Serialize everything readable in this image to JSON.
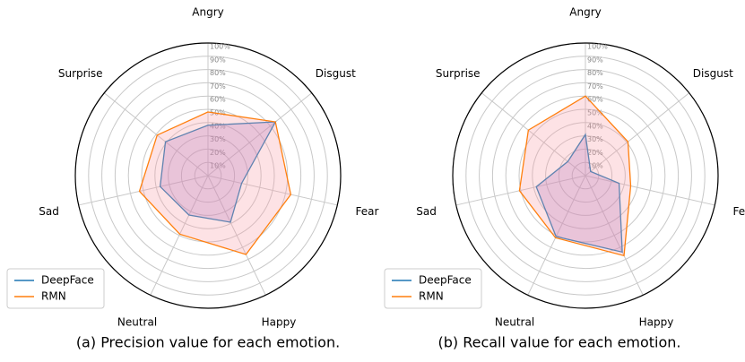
{
  "chart_data": [
    {
      "type": "radar",
      "caption": "(a) Precision value for each emotion.",
      "categories": [
        "Angry",
        "Disgust",
        "Fear",
        "Happy",
        "Neutral",
        "Sad",
        "Surprise"
      ],
      "series": [
        {
          "name": "DeepFace",
          "color": "#1f77b4",
          "fill": "#a070c8",
          "values": [
            38,
            65,
            26,
            39,
            33,
            37,
            41
          ]
        },
        {
          "name": "RMN",
          "color": "#ff7f0e",
          "fill": "#f7a0a8",
          "values": [
            48,
            65,
            64,
            66,
            49,
            53,
            49
          ]
        }
      ],
      "rlim": [
        0,
        100
      ],
      "rticks": [
        {
          "value": 10,
          "label": "10%"
        },
        {
          "value": 20,
          "label": "20%"
        },
        {
          "value": 30,
          "label": "30%"
        },
        {
          "value": 40,
          "label": "40%"
        },
        {
          "value": 50,
          "label": "50%"
        },
        {
          "value": 60,
          "label": "60%"
        },
        {
          "value": 70,
          "label": "70%"
        },
        {
          "value": 80,
          "label": "80%"
        },
        {
          "value": 90,
          "label": "90%"
        },
        {
          "value": 100,
          "label": "100%"
        }
      ],
      "legend": "lower left"
    },
    {
      "type": "radar",
      "caption": "(b) Recall value for each emotion.",
      "categories": [
        "Angry",
        "Disgust",
        "Fear",
        "Happy",
        "Neutral",
        "Sad",
        "Surprise"
      ],
      "series": [
        {
          "name": "DeepFace",
          "color": "#1f77b4",
          "fill": "#a070c8",
          "values": [
            31,
            5,
            26,
            64,
            51,
            38,
            17
          ]
        },
        {
          "name": "RMN",
          "color": "#ff7f0e",
          "fill": "#f7a0a8",
          "values": [
            60,
            41,
            35,
            67,
            52,
            51,
            55
          ]
        }
      ],
      "rlim": [
        0,
        100
      ],
      "rticks": [
        {
          "value": 10,
          "label": "10%"
        },
        {
          "value": 20,
          "label": "20%"
        },
        {
          "value": 30,
          "label": "30%"
        },
        {
          "value": 40,
          "label": "40%"
        },
        {
          "value": 50,
          "label": "50%"
        },
        {
          "value": 60,
          "label": "60%"
        },
        {
          "value": 70,
          "label": "70%"
        },
        {
          "value": 80,
          "label": "80%"
        },
        {
          "value": 90,
          "label": "90%"
        },
        {
          "value": 100,
          "label": "100%"
        }
      ],
      "legend": "lower left"
    }
  ]
}
